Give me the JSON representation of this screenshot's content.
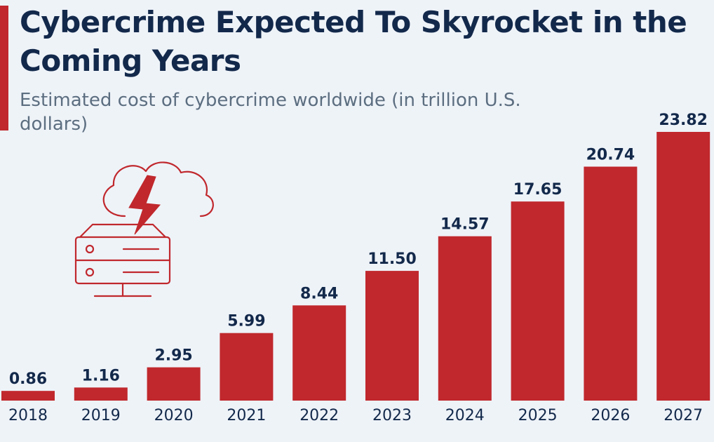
{
  "header": {
    "title": "Cybercrime Expected To Skyrocket in the Coming Years",
    "subtitle": "Estimated cost of cybercrime worldwide (in trillion U.S. dollars)"
  },
  "colors": {
    "bar": "#c0282d",
    "title": "#13294b",
    "subtitle": "#5c6e80",
    "background": "#eef3f8"
  },
  "illustration": {
    "icon": "cloud-server-lightning-icon"
  },
  "chart_data": {
    "type": "bar",
    "title": "Cybercrime Expected To Skyrocket in the Coming Years",
    "subtitle": "Estimated cost of cybercrime worldwide (in trillion U.S. dollars)",
    "xlabel": "",
    "ylabel": "",
    "categories": [
      "2018",
      "2019",
      "2020",
      "2021",
      "2022",
      "2023",
      "2024",
      "2025",
      "2026",
      "2027"
    ],
    "values": [
      0.86,
      1.16,
      2.95,
      5.99,
      8.44,
      11.5,
      14.57,
      17.65,
      20.74,
      23.82
    ],
    "value_labels": [
      "0.86",
      "1.16",
      "2.95",
      "5.99",
      "8.44",
      "11.50",
      "14.57",
      "17.65",
      "20.74",
      "23.82"
    ],
    "ylim": [
      0,
      23.82
    ],
    "grid": false,
    "legend": "none"
  }
}
